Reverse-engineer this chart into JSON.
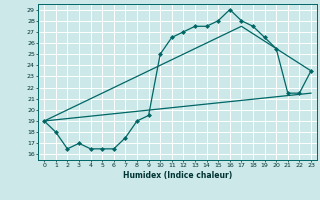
{
  "title": "",
  "xlabel": "Humidex (Indice chaleur)",
  "bg_color": "#cce8e8",
  "grid_color": "#ffffff",
  "line_color": "#006666",
  "xlim": [
    -0.5,
    23.5
  ],
  "ylim": [
    15.5,
    29.5
  ],
  "xticks": [
    0,
    1,
    2,
    3,
    4,
    5,
    6,
    7,
    8,
    9,
    10,
    11,
    12,
    13,
    14,
    15,
    16,
    17,
    18,
    19,
    20,
    21,
    22,
    23
  ],
  "yticks": [
    16,
    17,
    18,
    19,
    20,
    21,
    22,
    23,
    24,
    25,
    26,
    27,
    28,
    29
  ],
  "line1_x": [
    0,
    1,
    2,
    3,
    4,
    5,
    6,
    7,
    8,
    9,
    10,
    11,
    12,
    13,
    14,
    15,
    16,
    17,
    18,
    19,
    20,
    21,
    22,
    23
  ],
  "line1_y": [
    19,
    18,
    16.5,
    17,
    16.5,
    16.5,
    16.5,
    17.5,
    19,
    19.5,
    25,
    26.5,
    27,
    27.5,
    27.5,
    28,
    29,
    28,
    27.5,
    26.5,
    25.5,
    21.5,
    21.5,
    23.5
  ],
  "line3_x": [
    0,
    23
  ],
  "line3_y": [
    19,
    21.5
  ],
  "line4_x": [
    0,
    17,
    23
  ],
  "line4_y": [
    19,
    27.5,
    23.5
  ]
}
